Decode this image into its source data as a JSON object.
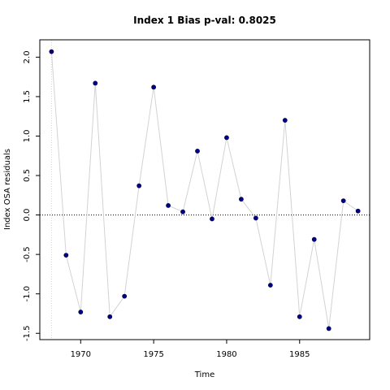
{
  "chart_data": {
    "type": "scatter",
    "title": "Index 1 Bias p-val: 0.8025",
    "xlabel": "Time",
    "ylabel": "Index OSA residuals",
    "xlim": [
      1967.2,
      1989.8
    ],
    "ylim": [
      -1.58,
      2.22
    ],
    "x_ticks": [
      1970,
      1975,
      1980,
      1985
    ],
    "y_ticks": [
      -1.5,
      -1.0,
      -0.5,
      0.0,
      0.5,
      1.0,
      1.5,
      2.0
    ],
    "x_tick_labels": [
      "1970",
      "1975",
      "1980",
      "1985"
    ],
    "y_tick_labels": [
      "-1.5",
      "-1.0",
      "-0.5",
      "0.0",
      "0.5",
      "1.0",
      "1.5",
      "2.0"
    ],
    "reference_line_y": 0.0,
    "grid": false,
    "series": [
      {
        "x": [
          1968,
          1969,
          1970,
          1971,
          1972,
          1973,
          1974,
          1975,
          1976,
          1977,
          1978,
          1979,
          1980,
          1981,
          1982,
          1983,
          1984,
          1985,
          1986,
          1987,
          1988,
          1989
        ],
        "values": [
          2.07,
          -0.51,
          -1.23,
          1.67,
          -1.29,
          -1.03,
          0.37,
          1.62,
          0.12,
          0.04,
          0.81,
          -0.05,
          0.98,
          0.2,
          -0.04,
          -0.89,
          1.2,
          -1.29,
          -0.31,
          -1.44,
          0.18,
          0.05
        ]
      }
    ]
  },
  "colors": {
    "title": "#1e8c1e",
    "points": "#00008b",
    "connector": "#d3d3d3",
    "reference_line": "#000000",
    "first_year_marker": "#d3d3d3"
  }
}
